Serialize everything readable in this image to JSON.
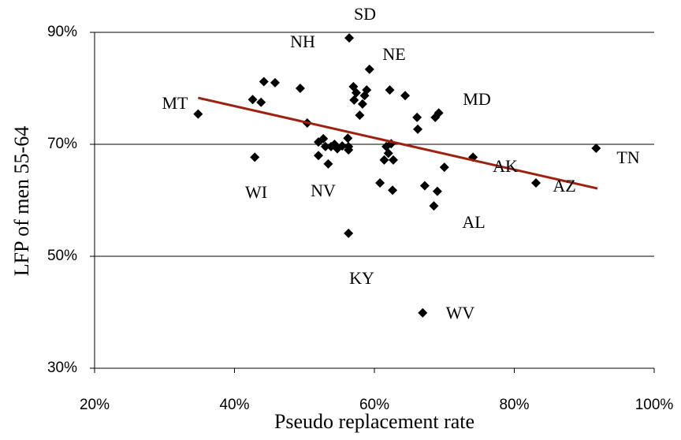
{
  "chart_data": {
    "type": "scatter",
    "xlabel": "Pseudo replacement rate",
    "ylabel": "LFP of men 55-64",
    "xlim": [
      20,
      100
    ],
    "ylim": [
      30,
      90
    ],
    "xticks": [
      {
        "value": 20,
        "label": "20%"
      },
      {
        "value": 40,
        "label": "40%"
      },
      {
        "value": 60,
        "label": "60%"
      },
      {
        "value": 80,
        "label": "80%"
      },
      {
        "value": 100,
        "label": "100%"
      }
    ],
    "yticks": [
      {
        "value": 30,
        "label": "30%"
      },
      {
        "value": 50,
        "label": "50%"
      },
      {
        "value": 70,
        "label": "70%"
      },
      {
        "value": 90,
        "label": "90%"
      }
    ],
    "grid": true,
    "color": "#000000",
    "x": [
      34.8,
      42.6,
      44.2,
      45.8,
      43.8,
      42.9,
      49.4,
      50.4,
      52.0,
      52.7,
      53.0,
      52.0,
      53.4,
      53.8,
      54.7,
      54.3,
      55.4,
      56.3,
      56.2,
      56.3,
      56.4,
      56.3,
      57.0,
      57.1,
      57.4,
      58.3,
      58.6,
      58.9,
      57.9,
      59.3,
      62.2,
      64.4,
      61.7,
      62.4,
      62.0,
      61.4,
      60.8,
      62.7,
      62.6,
      66.1,
      66.2,
      69.2,
      68.7,
      67.2,
      69.0,
      68.5,
      70.0,
      74.1,
      66.9,
      83.1,
      91.7
    ],
    "y": [
      75.4,
      78.0,
      81.2,
      81.0,
      77.5,
      67.7,
      80.0,
      73.8,
      70.4,
      71.0,
      69.6,
      68.0,
      66.5,
      69.6,
      69.2,
      70.0,
      69.7,
      69.0,
      71.1,
      69.6,
      89.0,
      54.1,
      80.3,
      77.9,
      79.2,
      77.2,
      78.7,
      79.7,
      75.2,
      83.4,
      79.7,
      78.7,
      69.6,
      70.1,
      68.4,
      67.2,
      63.1,
      67.2,
      61.8,
      74.8,
      72.7,
      75.6,
      74.8,
      62.6,
      61.6,
      59.0,
      65.9,
      67.7,
      39.9,
      63.1,
      69.3
    ],
    "trend": {
      "x": [
        34.8,
        91.9
      ],
      "y": [
        78.3,
        62.1
      ],
      "color": "#a0200f"
    },
    "annotations": [
      "SD",
      "NH",
      "NE",
      "MD",
      "MT",
      "TN",
      "AK",
      "AZ",
      "WI",
      "NV",
      "AL",
      "KY",
      "WV"
    ]
  }
}
